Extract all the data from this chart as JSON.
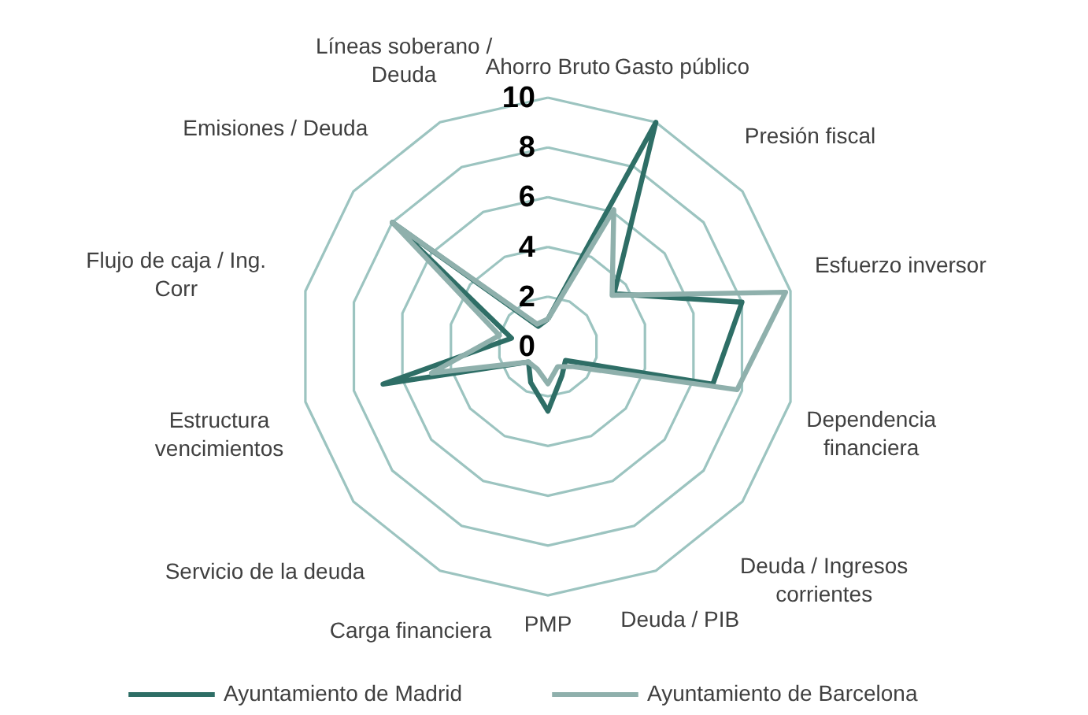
{
  "chart_data": {
    "type": "radar",
    "categories": [
      "Ahorro Bruto",
      "Gasto público",
      "Presión fiscal",
      "Esfuerzo inversor",
      "Dependencia financiera",
      "Deuda / Ingresos corrientes",
      "Deuda / PIB",
      "PMP",
      "Carga financiera",
      "Servicio de la deuda",
      "Estructura vencimientos",
      "Flujo de caja / Ing. Corr",
      "Emisiones / Deuda",
      "Líneas soberano / Deuda"
    ],
    "series": [
      {
        "name": "Ayuntamiento de Madrid",
        "color": "#2e6e66",
        "values": [
          1.1,
          10,
          3.4,
          8,
          6.8,
          0.9,
          1.3,
          2.6,
          1.6,
          1,
          6.8,
          1.5,
          8,
          0.9
        ]
      },
      {
        "name": "Ayuntamiento de Barcelona",
        "color": "#8fb0ac",
        "values": [
          1.1,
          6.1,
          3.3,
          9.8,
          7.8,
          1.3,
          0.9,
          1.5,
          1,
          1,
          4.8,
          2,
          8,
          1
        ]
      }
    ],
    "ylim": [
      0,
      10
    ],
    "yticks": [
      0,
      2,
      4,
      6,
      8,
      10
    ],
    "grid": true,
    "legend": "bottom",
    "marker": "none",
    "line_style": "solid"
  }
}
